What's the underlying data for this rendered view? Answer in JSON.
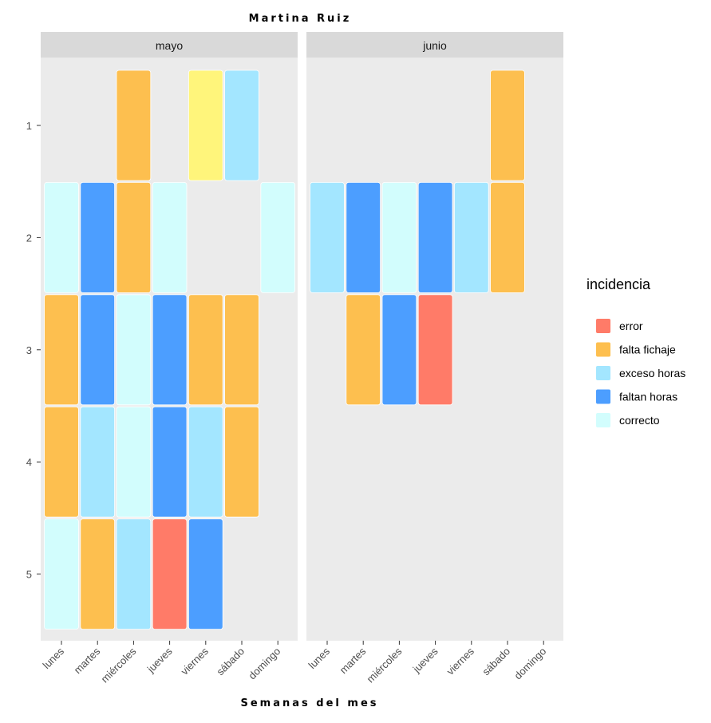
{
  "chart_data": {
    "type": "heatmap",
    "title": "Martina Ruiz",
    "xlabel": "Semanas del mes",
    "ylabel": "",
    "facets": [
      "mayo",
      "junio"
    ],
    "days": [
      "lunes",
      "martes",
      "miércoles",
      "jueves",
      "viernes",
      "sábado",
      "domingo"
    ],
    "weeks": [
      "1",
      "2",
      "3",
      "4",
      "5"
    ],
    "legend_title": "incidencia",
    "legend_position": "right",
    "categories": [
      {
        "key": "error",
        "label": "error",
        "color": "#ff7b68"
      },
      {
        "key": "falta_fichaje",
        "label": "falta fichaje",
        "color": "#fdbf4f"
      },
      {
        "key": "exceso_horas",
        "label": " exceso horas",
        "color": "#a3e6ff"
      },
      {
        "key": "faltan_horas",
        "label": "faltan horas",
        "color": "#4c9eff"
      },
      {
        "key": "correcto",
        "label": "correcto",
        "color": "#d2fdfd"
      },
      {
        "key": "libre",
        "label": "",
        "color": "#fff57b"
      }
    ],
    "cells": [
      {
        "facet": 0,
        "week": 1,
        "day": 2,
        "cat": "falta_fichaje"
      },
      {
        "facet": 0,
        "week": 1,
        "day": 4,
        "cat": "libre"
      },
      {
        "facet": 0,
        "week": 1,
        "day": 5,
        "cat": "exceso_horas"
      },
      {
        "facet": 0,
        "week": 2,
        "day": 0,
        "cat": "correcto"
      },
      {
        "facet": 0,
        "week": 2,
        "day": 1,
        "cat": "faltan_horas"
      },
      {
        "facet": 0,
        "week": 2,
        "day": 2,
        "cat": "falta_fichaje"
      },
      {
        "facet": 0,
        "week": 2,
        "day": 3,
        "cat": "correcto"
      },
      {
        "facet": 0,
        "week": 2,
        "day": 6,
        "cat": "correcto"
      },
      {
        "facet": 0,
        "week": 3,
        "day": 0,
        "cat": "falta_fichaje"
      },
      {
        "facet": 0,
        "week": 3,
        "day": 1,
        "cat": "faltan_horas"
      },
      {
        "facet": 0,
        "week": 3,
        "day": 2,
        "cat": "correcto"
      },
      {
        "facet": 0,
        "week": 3,
        "day": 3,
        "cat": "faltan_horas"
      },
      {
        "facet": 0,
        "week": 3,
        "day": 4,
        "cat": "falta_fichaje"
      },
      {
        "facet": 0,
        "week": 3,
        "day": 5,
        "cat": "falta_fichaje"
      },
      {
        "facet": 0,
        "week": 4,
        "day": 0,
        "cat": "falta_fichaje"
      },
      {
        "facet": 0,
        "week": 4,
        "day": 1,
        "cat": "exceso_horas"
      },
      {
        "facet": 0,
        "week": 4,
        "day": 2,
        "cat": "correcto"
      },
      {
        "facet": 0,
        "week": 4,
        "day": 3,
        "cat": "faltan_horas"
      },
      {
        "facet": 0,
        "week": 4,
        "day": 4,
        "cat": "exceso_horas"
      },
      {
        "facet": 0,
        "week": 4,
        "day": 5,
        "cat": "falta_fichaje"
      },
      {
        "facet": 0,
        "week": 5,
        "day": 0,
        "cat": "correcto"
      },
      {
        "facet": 0,
        "week": 5,
        "day": 1,
        "cat": "falta_fichaje"
      },
      {
        "facet": 0,
        "week": 5,
        "day": 2,
        "cat": "exceso_horas"
      },
      {
        "facet": 0,
        "week": 5,
        "day": 3,
        "cat": "error"
      },
      {
        "facet": 0,
        "week": 5,
        "day": 4,
        "cat": "faltan_horas"
      },
      {
        "facet": 1,
        "week": 1,
        "day": 5,
        "cat": "falta_fichaje"
      },
      {
        "facet": 1,
        "week": 2,
        "day": 0,
        "cat": "exceso_horas"
      },
      {
        "facet": 1,
        "week": 2,
        "day": 1,
        "cat": "faltan_horas"
      },
      {
        "facet": 1,
        "week": 2,
        "day": 2,
        "cat": "correcto"
      },
      {
        "facet": 1,
        "week": 2,
        "day": 3,
        "cat": "faltan_horas"
      },
      {
        "facet": 1,
        "week": 2,
        "day": 4,
        "cat": "exceso_horas"
      },
      {
        "facet": 1,
        "week": 2,
        "day": 5,
        "cat": "falta_fichaje"
      },
      {
        "facet": 1,
        "week": 3,
        "day": 1,
        "cat": "falta_fichaje"
      },
      {
        "facet": 1,
        "week": 3,
        "day": 2,
        "cat": "faltan_horas"
      },
      {
        "facet": 1,
        "week": 3,
        "day": 3,
        "cat": "error"
      }
    ]
  }
}
